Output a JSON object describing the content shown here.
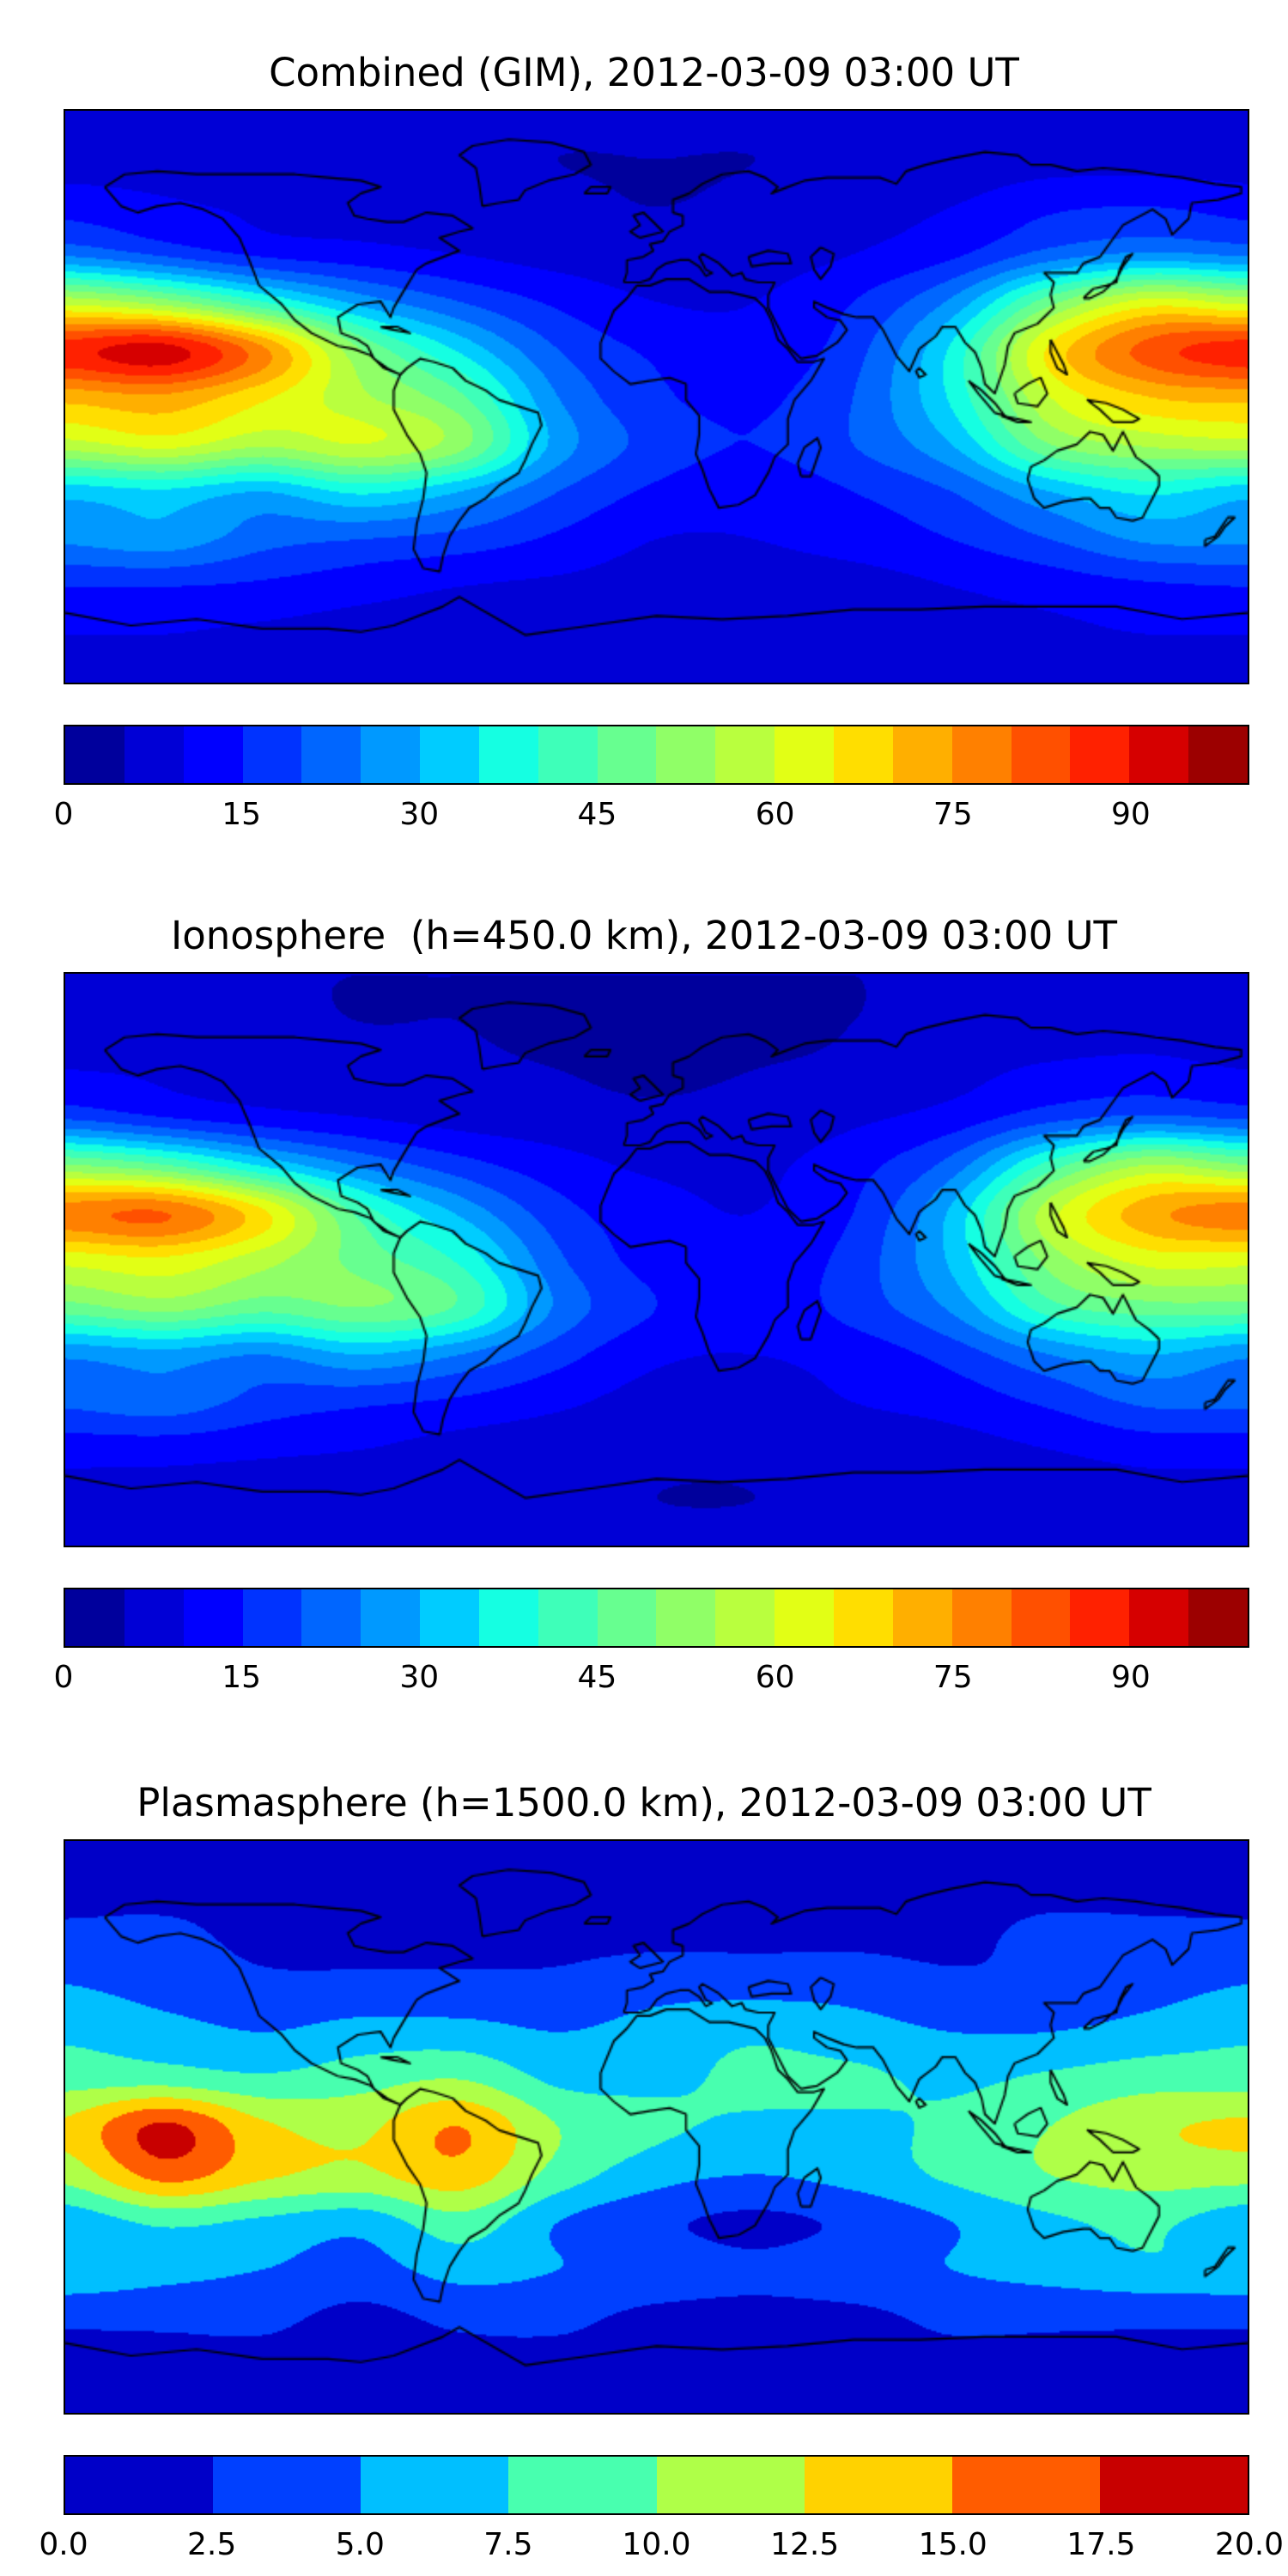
{
  "figure": {
    "background_color": "#ffffff",
    "coastline_color": "#000000",
    "frame_color": "#000000",
    "colormap": "jet"
  },
  "chart_data": [
    {
      "type": "heatmap",
      "title": "Combined (GIM), 2012-03-09 03:00 UT",
      "colormap": "jet",
      "projection": "equirectangular",
      "lon_range": [
        -180,
        180
      ],
      "lat_range": [
        -90,
        90
      ],
      "levels": {
        "min": 0,
        "max": 100,
        "step": 5
      },
      "colorbar_ticks": [
        0,
        15,
        30,
        45,
        60,
        75,
        90
      ],
      "colorbar_tick_labels": [
        "0",
        "15",
        "30",
        "45",
        "60",
        "75",
        "90"
      ],
      "lon": [
        -180,
        -150,
        -120,
        -90,
        -60,
        -30,
        0,
        30,
        60,
        90,
        120,
        150,
        180
      ],
      "lat": [
        90,
        75,
        60,
        45,
        30,
        15,
        0,
        -15,
        -30,
        -45,
        -60,
        -75,
        -90
      ],
      "values": [
        [
          6,
          6,
          6,
          6,
          6,
          6,
          6,
          6,
          6,
          6,
          6,
          6,
          6
        ],
        [
          8,
          8,
          7,
          6,
          6,
          5,
          5,
          5,
          6,
          7,
          8,
          8,
          8
        ],
        [
          13,
          11,
          9,
          8,
          7,
          6,
          5,
          6,
          8,
          10,
          14,
          15,
          13
        ],
        [
          24,
          19,
          14,
          12,
          10,
          8,
          7,
          8,
          10,
          14,
          22,
          26,
          24
        ],
        [
          58,
          52,
          40,
          28,
          20,
          14,
          10,
          10,
          15,
          26,
          48,
          62,
          58
        ],
        [
          88,
          92,
          76,
          50,
          34,
          20,
          14,
          12,
          18,
          36,
          66,
          82,
          88
        ],
        [
          72,
          74,
          66,
          56,
          46,
          25,
          16,
          14,
          20,
          36,
          60,
          70,
          72
        ],
        [
          58,
          62,
          56,
          60,
          52,
          28,
          18,
          15,
          20,
          30,
          50,
          56,
          58
        ],
        [
          32,
          34,
          30,
          36,
          30,
          20,
          14,
          12,
          15,
          20,
          30,
          36,
          32
        ],
        [
          26,
          28,
          22,
          20,
          18,
          14,
          10,
          10,
          12,
          15,
          20,
          26,
          26
        ],
        [
          15,
          15,
          14,
          12,
          10,
          9,
          8,
          8,
          8,
          10,
          12,
          14,
          15
        ],
        [
          10,
          10,
          9,
          8,
          8,
          7,
          7,
          7,
          7,
          8,
          9,
          10,
          10
        ],
        [
          8,
          8,
          8,
          8,
          8,
          8,
          8,
          8,
          8,
          8,
          8,
          8,
          8
        ]
      ]
    },
    {
      "type": "heatmap",
      "title": "Ionosphere  (h=450.0 km), 2012-03-09 03:00 UT",
      "colormap": "jet",
      "projection": "equirectangular",
      "lon_range": [
        -180,
        180
      ],
      "lat_range": [
        -90,
        90
      ],
      "levels": {
        "min": 0,
        "max": 100,
        "step": 5
      },
      "colorbar_ticks": [
        0,
        15,
        30,
        45,
        60,
        75,
        90
      ],
      "colorbar_tick_labels": [
        "0",
        "15",
        "30",
        "45",
        "60",
        "75",
        "90"
      ],
      "lon": [
        -180,
        -150,
        -120,
        -90,
        -60,
        -30,
        0,
        30,
        60,
        90,
        120,
        150,
        180
      ],
      "lat": [
        90,
        75,
        60,
        45,
        30,
        15,
        0,
        -15,
        -30,
        -45,
        -60,
        -75,
        -90
      ],
      "values": [
        [
          5,
          5,
          5,
          5,
          5,
          5,
          5,
          5,
          5,
          5,
          5,
          5,
          5
        ],
        [
          6,
          6,
          6,
          5,
          5,
          4,
          4,
          4,
          5,
          6,
          6,
          7,
          6
        ],
        [
          10,
          9,
          8,
          7,
          6,
          5,
          4,
          5,
          6,
          8,
          11,
          12,
          10
        ],
        [
          19,
          15,
          12,
          10,
          8,
          7,
          6,
          7,
          9,
          12,
          18,
          21,
          19
        ],
        [
          50,
          45,
          34,
          24,
          17,
          12,
          9,
          9,
          13,
          22,
          42,
          55,
          50
        ],
        [
          78,
          80,
          66,
          43,
          29,
          17,
          12,
          10,
          15,
          31,
          58,
          73,
          78
        ],
        [
          62,
          64,
          57,
          48,
          39,
          21,
          13,
          12,
          17,
          31,
          52,
          62,
          62
        ],
        [
          48,
          52,
          47,
          50,
          44,
          24,
          15,
          12,
          17,
          26,
          43,
          48,
          48
        ],
        [
          26,
          28,
          25,
          30,
          25,
          17,
          11,
          10,
          12,
          17,
          25,
          30,
          26
        ],
        [
          21,
          23,
          18,
          16,
          14,
          11,
          8,
          8,
          10,
          12,
          16,
          21,
          21
        ],
        [
          12,
          12,
          11,
          10,
          8,
          7,
          6,
          6,
          7,
          8,
          10,
          12,
          12
        ],
        [
          8,
          8,
          7,
          6,
          6,
          6,
          5,
          5,
          6,
          6,
          7,
          8,
          8
        ],
        [
          6,
          6,
          6,
          6,
          6,
          6,
          6,
          6,
          6,
          6,
          6,
          6,
          6
        ]
      ]
    },
    {
      "type": "heatmap",
      "title": "Plasmasphere (h=1500.0 km), 2012-03-09 03:00 UT",
      "colormap": "jet",
      "projection": "equirectangular",
      "lon_range": [
        -180,
        180
      ],
      "lat_range": [
        -90,
        90
      ],
      "levels": {
        "min": 0,
        "max": 20,
        "step": 2.5
      },
      "colorbar_ticks": [
        0,
        2.5,
        5,
        7.5,
        10,
        12.5,
        15,
        17.5,
        20
      ],
      "colorbar_tick_labels": [
        "0.0",
        "2.5",
        "5.0",
        "7.5",
        "10.0",
        "12.5",
        "15.0",
        "17.5",
        "20.0"
      ],
      "lon": [
        -180,
        -150,
        -120,
        -90,
        -60,
        -30,
        0,
        30,
        60,
        90,
        120,
        150,
        180
      ],
      "lat": [
        90,
        75,
        60,
        45,
        30,
        15,
        0,
        -15,
        -30,
        -45,
        -60,
        -75,
        -90
      ],
      "values": [
        [
          2,
          2,
          2,
          2,
          2,
          2,
          2,
          2,
          2,
          2,
          2,
          2,
          2
        ],
        [
          2,
          2,
          2,
          2,
          2,
          2,
          2,
          2,
          2,
          2,
          2,
          2,
          2
        ],
        [
          3,
          3,
          2,
          2,
          2,
          2,
          2,
          2,
          2,
          2,
          3,
          3,
          3
        ],
        [
          5,
          4,
          3,
          3,
          3,
          3,
          4,
          4,
          4,
          3,
          3,
          4,
          5
        ],
        [
          7,
          6,
          5,
          6,
          6,
          5,
          6,
          7,
          6,
          5,
          5,
          6,
          7
        ],
        [
          9,
          9,
          8,
          9,
          10,
          7,
          7,
          8,
          8,
          7,
          8,
          9,
          9
        ],
        [
          13,
          18,
          13,
          12,
          15,
          10,
          8,
          7,
          7,
          8,
          10,
          12,
          13
        ],
        [
          11,
          16,
          13,
          12,
          14,
          9,
          6,
          5,
          6,
          8,
          10,
          11,
          11
        ],
        [
          6,
          8,
          7,
          6,
          9,
          5,
          3,
          2,
          3,
          5,
          7,
          8,
          6
        ],
        [
          7,
          6,
          5,
          4,
          6,
          5,
          4,
          3,
          4,
          5,
          6,
          7,
          7
        ],
        [
          3,
          3,
          3,
          2,
          3,
          3,
          2,
          2,
          2,
          3,
          3,
          3,
          3
        ],
        [
          2,
          2,
          2,
          2,
          2,
          2,
          2,
          2,
          2,
          2,
          2,
          2,
          2
        ],
        [
          2,
          2,
          2,
          2,
          2,
          2,
          2,
          2,
          2,
          2,
          2,
          2,
          2
        ]
      ]
    }
  ]
}
